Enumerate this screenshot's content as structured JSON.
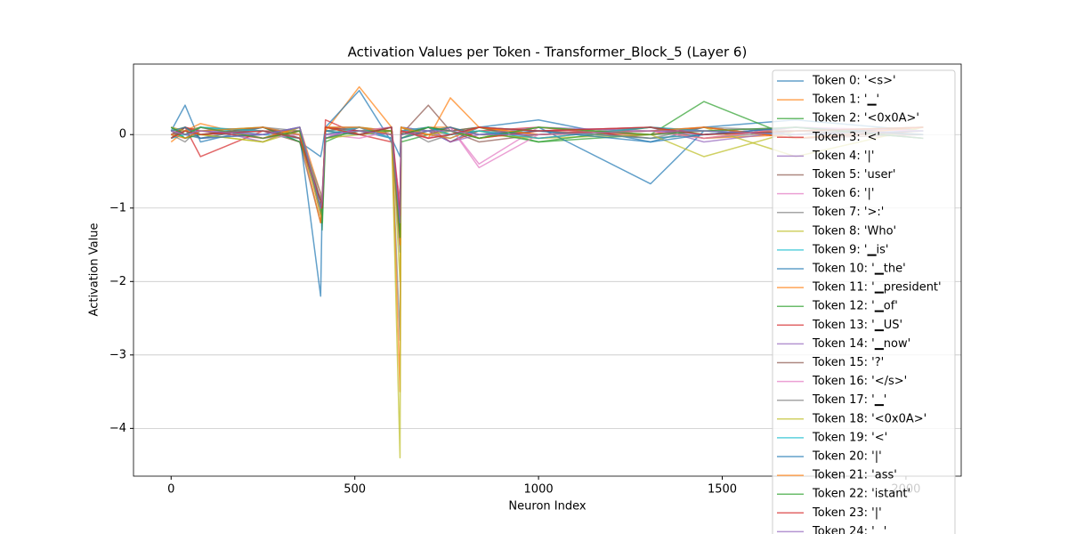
{
  "chart_data": {
    "type": "line",
    "title": "Activation Values per Token - Transformer_Block_5 (Layer 6)",
    "x_label": "Neuron Index",
    "y_label": "Activation Value",
    "xlim": [
      -102.4,
      2150.4
    ],
    "ylim": [
      -4.65,
      0.96
    ],
    "xticks": [
      0,
      500,
      1000,
      1500,
      2000
    ],
    "yticks": [
      {
        "value": -4,
        "label": "−4"
      },
      {
        "value": -3,
        "label": "−3"
      },
      {
        "value": -2,
        "label": "−2"
      },
      {
        "value": -1,
        "label": "−1"
      },
      0
    ],
    "grid": "y",
    "legend": "upper right",
    "x": [
      0,
      38,
      80,
      250,
      350,
      407,
      411,
      420,
      512,
      600,
      623,
      626,
      700,
      760,
      838,
      1000,
      1305,
      1450,
      1700,
      2047
    ],
    "series": [
      {
        "name": "Token 0: '<s>'",
        "color": "#1f77b4",
        "values": [
          0.05,
          0.4,
          -0.1,
          0.1,
          -0.1,
          -0.3,
          -0.2,
          0.1,
          0.05,
          -0.05,
          -0.3,
          0.1,
          0.05,
          -0.1,
          0.1,
          0.2,
          -0.1,
          0.1,
          0.2,
          0.05
        ]
      },
      {
        "name": "Token 1: '▁'",
        "color": "#ff7f0e",
        "values": [
          -0.1,
          0.05,
          0.15,
          -0.05,
          0.1,
          -0.8,
          -1.0,
          0.05,
          0.65,
          0.1,
          -1.2,
          0.0,
          0.1,
          0.1,
          -0.05,
          0.05,
          0.1,
          -0.05,
          0.0,
          0.1
        ]
      },
      {
        "name": "Token 2: '<0x0A>'",
        "color": "#2ca02c",
        "values": [
          0.1,
          -0.05,
          0.05,
          0.1,
          -0.05,
          -1.0,
          -1.3,
          -0.1,
          0.1,
          0.05,
          -1.5,
          -0.1,
          0.0,
          0.05,
          0.1,
          -0.1,
          0.0,
          0.45,
          -0.05,
          0.05
        ]
      },
      {
        "name": "Token 3: '<'",
        "color": "#d62728",
        "values": [
          0.0,
          0.1,
          -0.3,
          0.05,
          0.05,
          -0.9,
          -1.1,
          0.2,
          0.0,
          -0.1,
          -0.9,
          0.05,
          0.1,
          -0.1,
          0.05,
          0.1,
          -0.05,
          0.0,
          0.1,
          -0.05
        ]
      },
      {
        "name": "Token 4: '|'",
        "color": "#9467bd",
        "values": [
          0.05,
          0.0,
          0.1,
          -0.1,
          0.1,
          -0.9,
          -1.0,
          -0.05,
          0.1,
          0.0,
          -1.0,
          0.1,
          -0.05,
          0.0,
          0.1,
          0.05,
          0.1,
          -0.1,
          0.05,
          0.1
        ]
      },
      {
        "name": "Token 5: 'user'",
        "color": "#8c564b",
        "values": [
          -0.05,
          0.1,
          0.0,
          0.05,
          -0.1,
          -1.2,
          -0.9,
          0.1,
          0.05,
          0.1,
          -1.1,
          0.0,
          0.4,
          0.05,
          -0.1,
          0.0,
          0.05,
          0.1,
          -0.05,
          0.0
        ]
      },
      {
        "name": "Token 6: '|'",
        "color": "#e377c2",
        "values": [
          0.1,
          0.05,
          -0.05,
          0.0,
          0.1,
          -1.0,
          -0.8,
          0.0,
          -0.05,
          0.05,
          -1.0,
          0.05,
          0.0,
          0.1,
          -0.4,
          0.1,
          0.0,
          0.05,
          0.1,
          0.05
        ]
      },
      {
        "name": "Token 7: '>:'",
        "color": "#7f7f7f",
        "values": [
          0.0,
          -0.1,
          0.1,
          0.05,
          0.0,
          -0.8,
          -1.0,
          0.1,
          0.1,
          -0.05,
          -2.8,
          0.1,
          -0.1,
          0.0,
          0.05,
          0.0,
          0.1,
          -0.05,
          0.05,
          0.0
        ]
      },
      {
        "name": "Token 8: 'Who'",
        "color": "#bcbd22",
        "values": [
          0.05,
          0.1,
          0.0,
          -0.1,
          0.05,
          -0.9,
          -1.1,
          -0.05,
          0.0,
          0.1,
          -2.0,
          -0.05,
          0.05,
          0.1,
          0.0,
          -0.05,
          0.0,
          0.1,
          -0.3,
          0.1
        ]
      },
      {
        "name": "Token 9: '▁is'",
        "color": "#17becf",
        "values": [
          -0.05,
          0.05,
          0.1,
          0.0,
          -0.05,
          -1.0,
          -0.9,
          0.05,
          0.1,
          0.0,
          -1.2,
          0.1,
          0.0,
          -0.05,
          0.1,
          0.05,
          -0.05,
          0.0,
          0.1,
          -0.05
        ]
      },
      {
        "name": "Token 10: '▁the'",
        "color": "#1f77b4",
        "values": [
          0.1,
          0.0,
          -0.05,
          0.1,
          0.0,
          -2.2,
          -1.0,
          0.1,
          0.6,
          -0.1,
          -1.3,
          0.0,
          0.1,
          0.05,
          -0.05,
          0.1,
          -0.67,
          0.05,
          0.0,
          0.1
        ]
      },
      {
        "name": "Token 11: '▁president'",
        "color": "#ff7f0e",
        "values": [
          0.0,
          0.05,
          0.1,
          -0.05,
          0.1,
          -1.1,
          -0.9,
          0.0,
          0.1,
          0.05,
          -3.5,
          0.1,
          -0.05,
          0.5,
          0.1,
          0.0,
          0.05,
          -0.05,
          0.1,
          0.0
        ]
      },
      {
        "name": "Token 12: '▁of'",
        "color": "#2ca02c",
        "values": [
          0.05,
          -0.05,
          0.0,
          0.1,
          -0.1,
          -0.9,
          -1.2,
          0.05,
          0.0,
          0.1,
          -1.4,
          -0.05,
          0.1,
          0.0,
          0.05,
          -0.1,
          0.1,
          0.0,
          0.05,
          0.1
        ]
      },
      {
        "name": "Token 13: '▁US'",
        "color": "#d62728",
        "values": [
          0.0,
          0.1,
          0.05,
          -0.05,
          0.05,
          -1.0,
          -1.0,
          0.1,
          0.05,
          0.0,
          -1.1,
          0.05,
          0.0,
          0.1,
          -0.05,
          0.05,
          0.0,
          0.1,
          -0.05,
          0.05
        ]
      },
      {
        "name": "Token 14: '▁now'",
        "color": "#9467bd",
        "values": [
          0.1,
          0.0,
          0.05,
          0.0,
          0.1,
          -1.1,
          -0.9,
          -0.05,
          0.1,
          -0.05,
          -1.3,
          0.1,
          0.05,
          -0.1,
          0.0,
          0.1,
          0.05,
          0.0,
          0.1,
          -0.05
        ]
      },
      {
        "name": "Token 15: '?'",
        "color": "#8c564b",
        "values": [
          -0.05,
          0.1,
          0.0,
          0.1,
          -0.05,
          -0.9,
          -1.1,
          0.1,
          0.0,
          0.05,
          -1.2,
          0.0,
          0.1,
          0.05,
          0.1,
          -0.05,
          0.1,
          0.05,
          0.0,
          0.1
        ]
      },
      {
        "name": "Token 16: '</s>'",
        "color": "#e377c2",
        "values": [
          0.05,
          0.0,
          0.1,
          -0.05,
          0.0,
          -1.0,
          -1.0,
          0.0,
          0.05,
          0.1,
          -1.0,
          0.05,
          -0.05,
          0.1,
          -0.45,
          0.0,
          0.05,
          -0.05,
          0.1,
          0.05
        ]
      },
      {
        "name": "Token 17: '▁'",
        "color": "#7f7f7f",
        "values": [
          0.0,
          0.05,
          -0.05,
          0.1,
          0.05,
          -1.0,
          -0.9,
          0.05,
          0.1,
          0.0,
          -1.6,
          0.0,
          0.05,
          0.0,
          0.1,
          0.05,
          -0.05,
          0.1,
          0.05,
          0.0
        ]
      },
      {
        "name": "Token 18: '<0x0A>'",
        "color": "#bcbd22",
        "values": [
          0.1,
          0.05,
          0.0,
          -0.1,
          0.1,
          -1.1,
          -1.0,
          0.1,
          0.0,
          0.05,
          -4.4,
          0.1,
          0.0,
          0.05,
          -0.05,
          0.1,
          0.0,
          -0.3,
          0.05,
          0.1
        ]
      },
      {
        "name": "Token 19: '<'",
        "color": "#17becf",
        "values": [
          -0.05,
          0.0,
          0.1,
          0.05,
          -0.05,
          -0.9,
          -1.1,
          0.0,
          0.1,
          -0.05,
          -1.2,
          0.05,
          0.1,
          0.0,
          0.05,
          -0.05,
          0.1,
          0.05,
          0.0,
          0.05
        ]
      },
      {
        "name": "Token 20: '|'",
        "color": "#1f77b4",
        "values": [
          0.05,
          0.1,
          -0.05,
          0.0,
          0.1,
          -1.0,
          -1.0,
          0.05,
          0.0,
          0.1,
          -1.3,
          -0.05,
          0.05,
          0.1,
          0.0,
          0.05,
          -0.1,
          0.0,
          0.1,
          0.0
        ]
      },
      {
        "name": "Token 21: 'ass'",
        "color": "#ff7f0e",
        "values": [
          0.0,
          -0.05,
          0.05,
          0.1,
          0.0,
          -1.2,
          -0.9,
          0.1,
          0.1,
          0.0,
          -1.5,
          0.1,
          0.0,
          -0.05,
          0.1,
          0.0,
          0.05,
          0.1,
          -0.05,
          0.1
        ]
      },
      {
        "name": "Token 22: 'istant'",
        "color": "#2ca02c",
        "values": [
          0.1,
          0.0,
          0.1,
          -0.05,
          0.05,
          -1.0,
          -1.1,
          -0.05,
          0.05,
          0.05,
          -1.4,
          0.0,
          0.1,
          0.05,
          -0.05,
          0.1,
          0.0,
          0.05,
          0.1,
          -0.05
        ]
      },
      {
        "name": "Token 23: '|'",
        "color": "#d62728",
        "values": [
          -0.05,
          0.05,
          0.0,
          0.05,
          -0.05,
          -0.9,
          -1.0,
          0.1,
          0.0,
          0.1,
          -1.1,
          0.05,
          -0.05,
          0.0,
          0.1,
          0.05,
          0.1,
          0.0,
          0.05,
          0.1
        ]
      },
      {
        "name": "Token 24: '▁'",
        "color": "#9467bd",
        "values": [
          0.05,
          0.0,
          0.05,
          0.0,
          0.1,
          -1.0,
          -0.9,
          0.0,
          0.05,
          0.0,
          -1.2,
          0.0,
          0.05,
          0.05,
          0.0,
          0.0,
          0.05,
          0.05,
          0.0,
          0.05
        ]
      }
    ]
  }
}
